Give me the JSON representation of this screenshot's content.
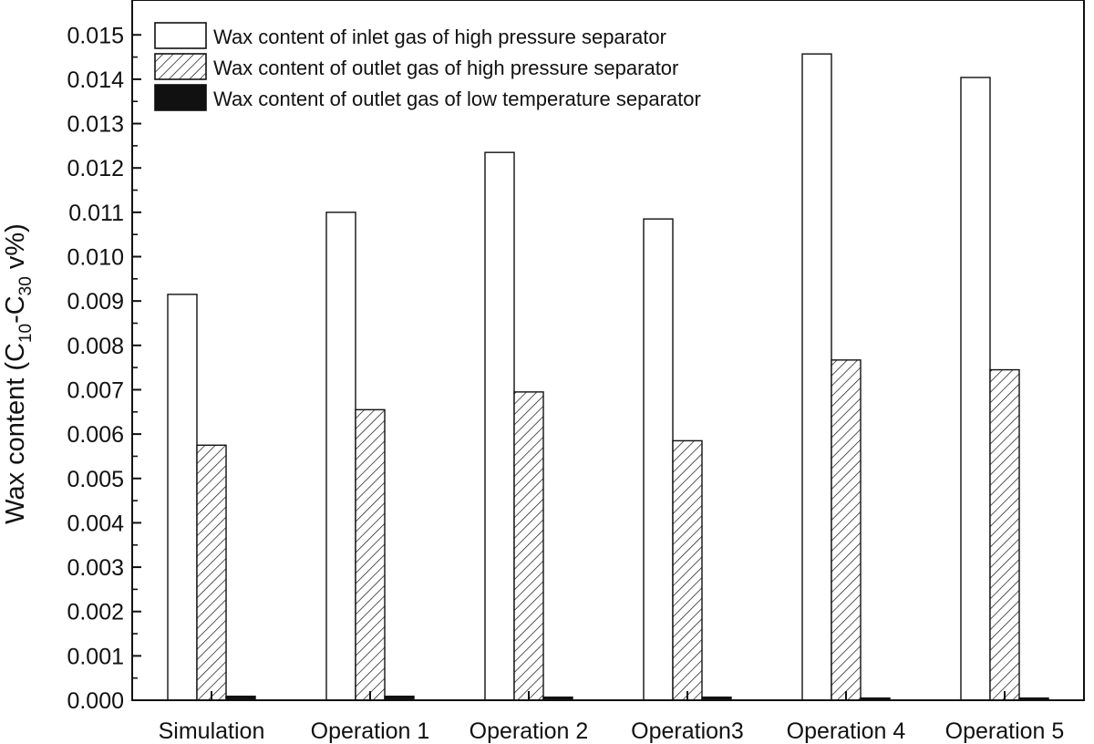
{
  "chart_data": {
    "type": "bar",
    "title": "",
    "xlabel": "",
    "ylabel": {
      "main": "Wax content (C",
      "sub1": "10",
      "mid": "-C",
      "sub2": "30",
      "end": " v%)"
    },
    "categories": [
      "Simulation",
      "Operation 1",
      "Operation 2",
      "Operation3",
      "Operation 4",
      "Operation 5"
    ],
    "ylim": [
      0,
      0.0155
    ],
    "yticks": [
      "0.000",
      "0.001",
      "0.002",
      "0.003",
      "0.004",
      "0.005",
      "0.006",
      "0.007",
      "0.008",
      "0.009",
      "0.010",
      "0.011",
      "0.012",
      "0.013",
      "0.014",
      "0.015"
    ],
    "series": [
      {
        "name": "Wax content of inlet gas of high pressure separator",
        "fill": "white",
        "values": [
          0.00915,
          0.011,
          0.01235,
          0.01085,
          0.01457,
          0.01404
        ]
      },
      {
        "name": "Wax content of outlet gas of high pressure separator",
        "fill": "hatch",
        "values": [
          0.00575,
          0.00655,
          0.00695,
          0.00585,
          0.00767,
          0.00745
        ]
      },
      {
        "name": "Wax content of outlet gas of low temperature separator",
        "fill": "black",
        "values": [
          9e-05,
          9e-05,
          7e-05,
          7e-05,
          5e-05,
          5e-05
        ]
      }
    ],
    "legend_position": "top-left",
    "colors": {
      "ink": "#111111",
      "background": "#ffffff"
    }
  }
}
